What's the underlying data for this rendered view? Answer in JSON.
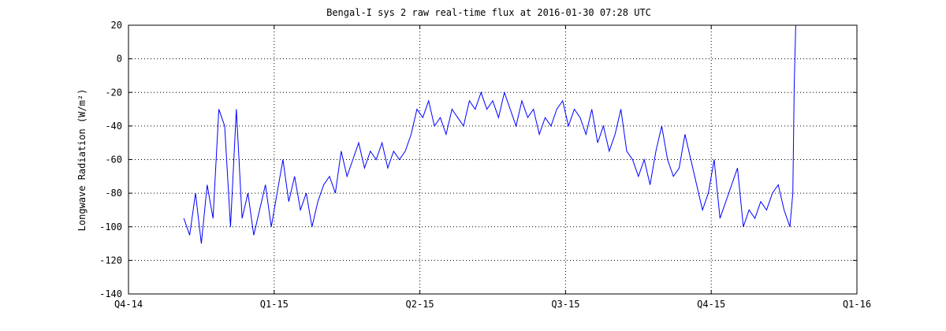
{
  "chart_data": {
    "type": "line",
    "title": "Bengal-I sys 2 raw real-time flux at 2016-01-30 07:28 UTC",
    "y_label": "Longwave Radiation (W/m²)",
    "x": [
      0.38,
      0.42,
      0.46,
      0.5,
      0.54,
      0.58,
      0.62,
      0.66,
      0.7,
      0.74,
      0.78,
      0.82,
      0.86,
      0.9,
      0.94,
      0.98,
      1.02,
      1.06,
      1.1,
      1.14,
      1.18,
      1.22,
      1.26,
      1.3,
      1.34,
      1.38,
      1.42,
      1.46,
      1.5,
      1.54,
      1.58,
      1.62,
      1.66,
      1.7,
      1.74,
      1.78,
      1.82,
      1.86,
      1.9,
      1.94,
      1.98,
      2.02,
      2.06,
      2.1,
      2.14,
      2.18,
      2.22,
      2.26,
      2.3,
      2.34,
      2.38,
      2.42,
      2.46,
      2.5,
      2.54,
      2.58,
      2.62,
      2.66,
      2.7,
      2.74,
      2.78,
      2.82,
      2.86,
      2.9,
      2.94,
      2.98,
      3.02,
      3.06,
      3.1,
      3.14,
      3.18,
      3.22,
      3.26,
      3.3,
      3.34,
      3.38,
      3.42,
      3.46,
      3.5,
      3.54,
      3.58,
      3.62,
      3.66,
      3.7,
      3.74,
      3.78,
      3.82,
      3.86,
      3.9,
      3.94,
      3.98,
      4.02,
      4.06,
      4.1,
      4.14,
      4.18,
      4.22,
      4.26,
      4.3,
      4.34,
      4.38,
      4.42,
      4.46,
      4.5,
      4.54,
      4.56,
      4.57,
      4.58
    ],
    "series": [
      {
        "name": "flux",
        "color": "#0000ff",
        "values": [
          -95,
          -105,
          -80,
          -110,
          -75,
          -95,
          -30,
          -40,
          -100,
          -30,
          -95,
          -80,
          -105,
          -90,
          -75,
          -100,
          -80,
          -60,
          -85,
          -70,
          -90,
          -80,
          -100,
          -85,
          -75,
          -70,
          -80,
          -55,
          -70,
          -60,
          -50,
          -65,
          -55,
          -60,
          -50,
          -65,
          -55,
          -60,
          -55,
          -45,
          -30,
          -35,
          -25,
          -40,
          -35,
          -45,
          -30,
          -35,
          -40,
          -25,
          -30,
          -20,
          -30,
          -25,
          -35,
          -20,
          -30,
          -40,
          -25,
          -35,
          -30,
          -45,
          -35,
          -40,
          -30,
          -25,
          -40,
          -30,
          -35,
          -45,
          -30,
          -50,
          -40,
          -55,
          -45,
          -30,
          -55,
          -60,
          -70,
          -60,
          -75,
          -55,
          -40,
          -60,
          -70,
          -65,
          -45,
          -60,
          -75,
          -90,
          -80,
          -60,
          -95,
          -85,
          -75,
          -65,
          -100,
          -90,
          -95,
          -85,
          -90,
          -80,
          -75,
          -90,
          -100,
          -80,
          -15,
          20
        ]
      }
    ],
    "xlim": [
      0,
      5
    ],
    "xticks": [
      {
        "value": 0,
        "label": "Q4-14"
      },
      {
        "value": 1,
        "label": "Q1-15"
      },
      {
        "value": 2,
        "label": "Q2-15"
      },
      {
        "value": 3,
        "label": "Q3-15"
      },
      {
        "value": 4,
        "label": "Q4-15"
      },
      {
        "value": 5,
        "label": "Q1-16"
      }
    ],
    "ylim": [
      -140,
      20
    ],
    "yticks": [
      -140,
      -120,
      -100,
      -80,
      -60,
      -40,
      -20,
      0,
      20
    ],
    "grid": true
  }
}
